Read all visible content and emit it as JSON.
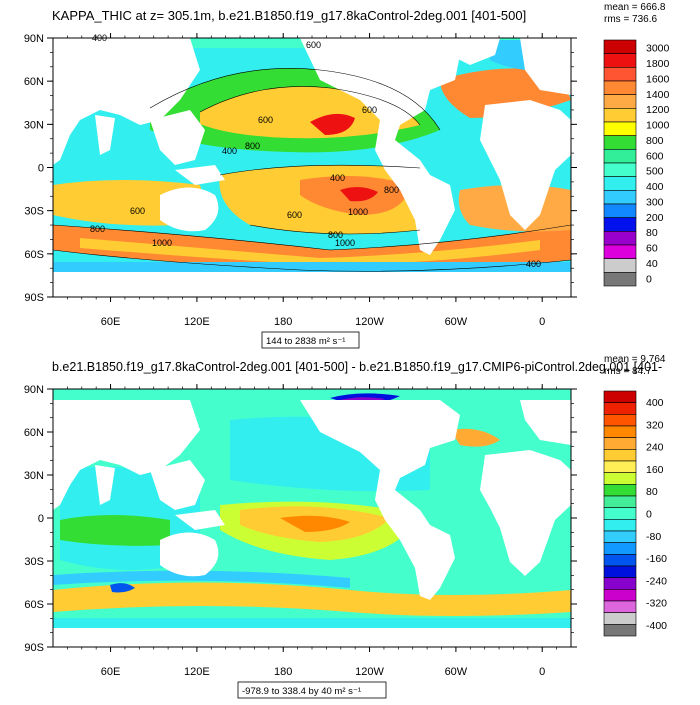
{
  "palette": {
    "background": "#ffffff",
    "land": "#ffffff",
    "frame": "#000000"
  },
  "chart_data": [
    {
      "type": "heatmap",
      "title": "KAPPA_THIC at z= 305.1m, b.e21.B1850.f19_g17.8kaControl-2deg.001 [401-500]",
      "stats": [
        "mean = 666.8",
        "rms = 736.6"
      ],
      "range_label": "144 to 2838 m² s⁻¹",
      "x_tick_labels": [
        "60E",
        "120E",
        "180",
        "120W",
        "60W",
        "0"
      ],
      "y_tick_labels": [
        "90N",
        "60N",
        "30N",
        "0",
        "30S",
        "60S",
        "90S"
      ],
      "contour_labels": [
        "400",
        "600",
        "600",
        "400",
        "800",
        "600",
        "400",
        "800",
        "1000",
        "1000",
        "600",
        "800",
        "1000",
        "800",
        "600",
        "400"
      ],
      "colorbar": {
        "labels": [
          "3000",
          "1800",
          "1600",
          "1400",
          "1200",
          "1000",
          "800",
          "600",
          "500",
          "400",
          "300",
          "200",
          "80",
          "60",
          "40",
          "0"
        ],
        "colors": [
          "#cc0000",
          "#ee1111",
          "#ff5533",
          "#ff8833",
          "#ffaa44",
          "#ffcc33",
          "#ffff00",
          "#33dd33",
          "#33ee99",
          "#44ffcc",
          "#33eeee",
          "#33ccff",
          "#1188ff",
          "#0011ee",
          "#9900cc",
          "#dd00dd",
          "#cccccc",
          "#777777"
        ]
      }
    },
    {
      "type": "heatmap",
      "title": "b.e21.B1850.f19_g17.8kaControl-2deg.001 [401-500] - b.e21.B1850.f19_g17.CMIP6-piControl.2deg.001 [401-",
      "stats": [
        "mean = 9.764",
        "rms = 84.7"
      ],
      "range_label": "-978.9 to 338.4 by 40 m² s⁻¹",
      "x_tick_labels": [
        "60E",
        "120E",
        "180",
        "120W",
        "60W",
        "0"
      ],
      "y_tick_labels": [
        "90N",
        "60N",
        "30N",
        "0",
        "30S",
        "60S",
        "90S"
      ],
      "colorbar": {
        "labels": [
          "400",
          "320",
          "240",
          "160",
          "80",
          "0",
          "-80",
          "-160",
          "-240",
          "-320",
          "-400"
        ],
        "colors": [
          "#cc0000",
          "#ee2200",
          "#ff5500",
          "#ff8800",
          "#ffaa33",
          "#ffcc33",
          "#ffee55",
          "#ccff33",
          "#33dd33",
          "#44ee99",
          "#44ffcc",
          "#33eeee",
          "#33ccff",
          "#1199ff",
          "#0055ee",
          "#0011dd",
          "#8800cc",
          "#cc00cc",
          "#dd66dd",
          "#cccccc",
          "#777777"
        ]
      }
    }
  ]
}
